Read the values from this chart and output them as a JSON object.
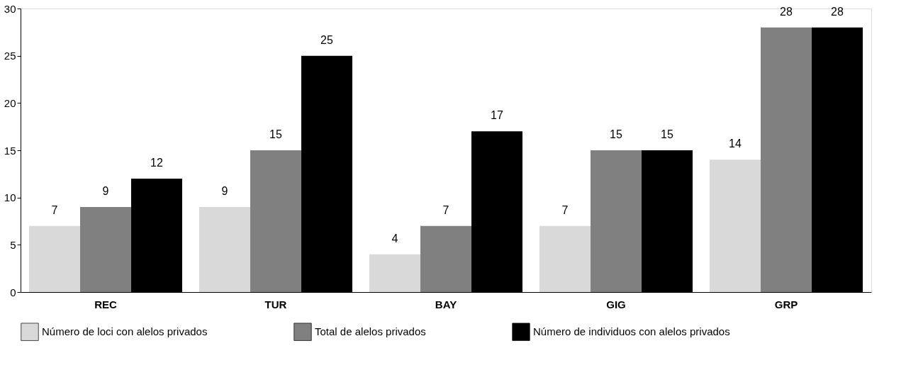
{
  "chart_data": {
    "type": "bar",
    "categories": [
      "REC",
      "TUR",
      "BAY",
      "GIG",
      "GRP"
    ],
    "series": [
      {
        "name": "Número de loci con alelos privados",
        "color": "#d9d9d9",
        "values": [
          7,
          9,
          4,
          7,
          14
        ]
      },
      {
        "name": "Total de alelos privados",
        "color": "#808080",
        "values": [
          9,
          15,
          7,
          15,
          28
        ]
      },
      {
        "name": "Número de individuos con alelos privados",
        "color": "#000000",
        "values": [
          12,
          25,
          17,
          15,
          28
        ]
      }
    ],
    "ylim": [
      0,
      30
    ],
    "yticks": [
      0,
      5,
      10,
      15,
      20,
      25,
      30
    ],
    "grid": false,
    "legend": "bottom",
    "data_labels": true
  }
}
